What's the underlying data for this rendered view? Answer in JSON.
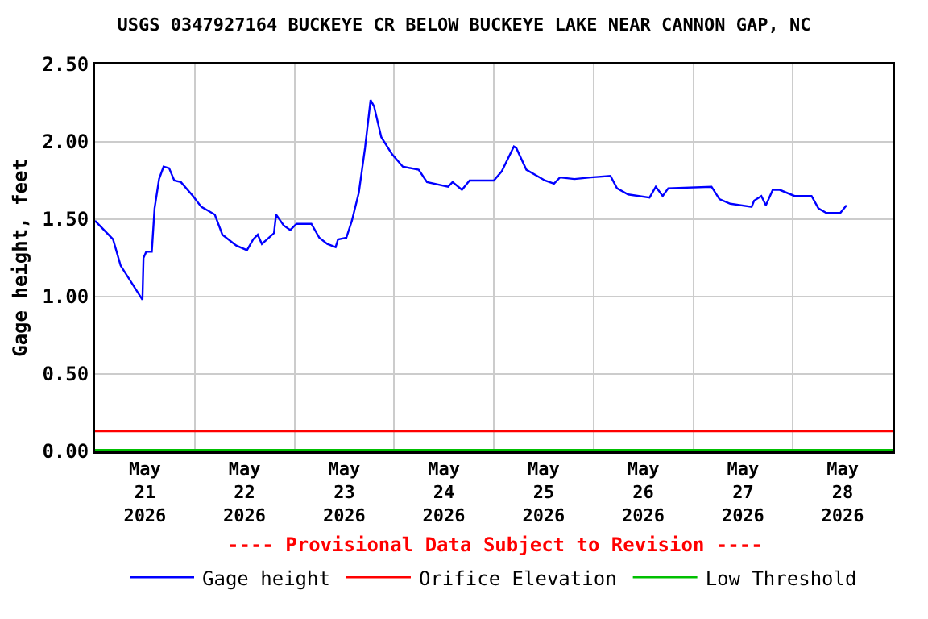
{
  "chart_data": {
    "type": "line",
    "title": "USGS 0347927164 BUCKEYE CR BELOW BUCKEYE LAKE NEAR CANNON GAP, NC",
    "ylabel": "Gage height, feet",
    "annotations": [
      "---- Provisional Data Subject to Revision ----"
    ],
    "x": [
      "2026-05-21T00:00",
      "2026-05-21T04:20",
      "2026-05-21T06:10",
      "2026-05-21T11:25",
      "2026-05-21T11:40",
      "2026-05-21T12:20",
      "2026-05-21T13:40",
      "2026-05-21T14:20",
      "2026-05-21T15:25",
      "2026-05-21T16:30",
      "2026-05-21T17:50",
      "2026-05-21T19:05",
      "2026-05-21T20:40",
      "2026-05-21T23:35",
      "2026-05-22T01:35",
      "2026-05-22T04:50",
      "2026-05-22T06:40",
      "2026-05-22T10:00",
      "2026-05-22T12:35",
      "2026-05-22T14:05",
      "2026-05-22T15:10",
      "2026-05-22T16:10",
      "2026-05-22T19:05",
      "2026-05-22T19:35",
      "2026-05-22T21:25",
      "2026-05-22T23:00",
      "2026-05-23T00:30",
      "2026-05-23T04:05",
      "2026-05-23T06:00",
      "2026-05-23T07:55",
      "2026-05-23T09:55",
      "2026-05-23T10:30",
      "2026-05-23T12:30",
      "2026-05-23T13:50",
      "2026-05-23T15:30",
      "2026-05-23T17:00",
      "2026-05-23T18:20",
      "2026-05-23T19:10",
      "2026-05-23T20:55",
      "2026-05-23T23:30",
      "2026-05-24T02:05",
      "2026-05-24T05:55",
      "2026-05-24T07:55",
      "2026-05-24T13:00",
      "2026-05-24T14:05",
      "2026-05-24T16:20",
      "2026-05-24T18:10",
      "2026-05-24T21:25",
      "2026-05-25T00:00",
      "2026-05-25T01:55",
      "2026-05-25T04:50",
      "2026-05-25T05:25",
      "2026-05-25T07:50",
      "2026-05-25T12:20",
      "2026-05-25T14:30",
      "2026-05-25T15:55",
      "2026-05-25T19:25",
      "2026-05-25T23:20",
      "2026-05-26T04:05",
      "2026-05-26T05:40",
      "2026-05-26T08:20",
      "2026-05-26T13:30",
      "2026-05-26T15:00",
      "2026-05-26T16:40",
      "2026-05-26T18:00",
      "2026-05-27T04:25",
      "2026-05-27T06:20",
      "2026-05-27T08:55",
      "2026-05-27T14:05",
      "2026-05-27T14:40",
      "2026-05-27T16:25",
      "2026-05-27T17:30",
      "2026-05-27T19:10",
      "2026-05-27T20:50",
      "2026-05-28T00:25",
      "2026-05-28T04:30",
      "2026-05-28T06:10",
      "2026-05-28T08:05",
      "2026-05-28T11:25",
      "2026-05-28T12:55"
    ],
    "series": [
      {
        "name": "Gage height",
        "color": "#0000ff",
        "values": [
          1.49,
          1.37,
          1.2,
          0.98,
          1.25,
          1.29,
          1.29,
          1.57,
          1.76,
          1.84,
          1.83,
          1.75,
          1.74,
          1.65,
          1.58,
          1.53,
          1.4,
          1.33,
          1.3,
          1.37,
          1.4,
          1.34,
          1.41,
          1.53,
          1.46,
          1.43,
          1.47,
          1.47,
          1.38,
          1.34,
          1.32,
          1.37,
          1.38,
          1.49,
          1.67,
          1.96,
          2.27,
          2.23,
          2.03,
          1.92,
          1.84,
          1.82,
          1.74,
          1.71,
          1.74,
          1.69,
          1.75,
          1.75,
          1.75,
          1.81,
          1.97,
          1.96,
          1.82,
          1.75,
          1.73,
          1.77,
          1.76,
          1.77,
          1.78,
          1.7,
          1.66,
          1.64,
          1.71,
          1.65,
          1.7,
          1.71,
          1.63,
          1.6,
          1.58,
          1.62,
          1.65,
          1.59,
          1.69,
          1.69,
          1.65,
          1.65,
          1.57,
          1.54,
          1.54,
          1.59
        ]
      }
    ],
    "ref_lines": [
      {
        "axis": "y",
        "value": 0.13,
        "label": "Orifice Elevation",
        "color": "#ff0000"
      },
      {
        "axis": "y",
        "value": 0.01,
        "label": "Low Threshold",
        "color": "#00c000"
      }
    ],
    "xlim": [
      "2026-05-21T00:00",
      "2026-05-29T00:00"
    ],
    "xticks": [
      {
        "value": "2026-05-21T12:00",
        "label": "May\n21\n2026"
      },
      {
        "value": "2026-05-22T12:00",
        "label": "May\n22\n2026"
      },
      {
        "value": "2026-05-23T12:00",
        "label": "May\n23\n2026"
      },
      {
        "value": "2026-05-24T12:00",
        "label": "May\n24\n2026"
      },
      {
        "value": "2026-05-25T12:00",
        "label": "May\n25\n2026"
      },
      {
        "value": "2026-05-26T12:00",
        "label": "May\n26\n2026"
      },
      {
        "value": "2026-05-27T12:00",
        "label": "May\n27\n2026"
      },
      {
        "value": "2026-05-28T12:00",
        "label": "May\n28\n2026"
      },
      {
        "value": "2026-05-22T00:00",
        "label": null
      },
      {
        "value": "2026-05-23T00:00",
        "label": null
      },
      {
        "value": "2026-05-24T00:00",
        "label": null
      },
      {
        "value": "2026-05-25T00:00",
        "label": null
      },
      {
        "value": "2026-05-26T00:00",
        "label": null
      },
      {
        "value": "2026-05-27T00:00",
        "label": null
      },
      {
        "value": "2026-05-28T00:00",
        "label": null
      }
    ],
    "ylim": [
      0,
      2.5
    ],
    "yticks": [
      {
        "value": 0,
        "label": "0.00"
      },
      {
        "value": 0.5,
        "label": "0.50"
      },
      {
        "value": 1,
        "label": "1.00"
      },
      {
        "value": 1.5,
        "label": "1.50"
      },
      {
        "value": 2,
        "label": "2.00"
      },
      {
        "value": 2.5,
        "label": "2.50"
      }
    ],
    "grid": true,
    "legend": "bottom"
  }
}
